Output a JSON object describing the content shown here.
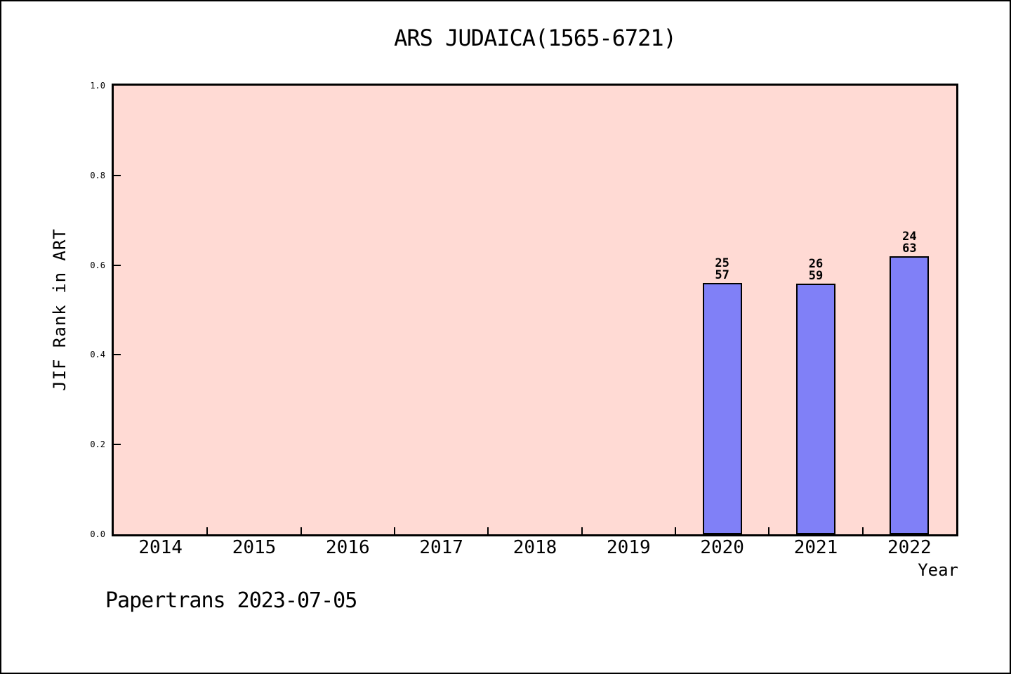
{
  "page": {
    "footer": "Papertrans 2023-07-05"
  },
  "chart_data": {
    "type": "bar",
    "title": "ARS JUDAICA(1565-6721)",
    "xlabel": "Year",
    "ylabel": "JIF Rank in ART",
    "categories": [
      "2014",
      "2015",
      "2016",
      "2017",
      "2018",
      "2019",
      "2020",
      "2021",
      "2022"
    ],
    "series": [
      {
        "name": "JIF Rank in ART",
        "values": [
          null,
          null,
          null,
          null,
          null,
          null,
          0.561,
          0.559,
          0.619
        ]
      }
    ],
    "bar_labels": [
      null,
      null,
      null,
      null,
      null,
      null,
      [
        "25",
        "57"
      ],
      [
        "26",
        "59"
      ],
      [
        "24",
        "63"
      ]
    ],
    "ylim": [
      0.0,
      1.0
    ],
    "yticks": [
      0.0,
      0.2,
      0.4,
      0.6,
      0.8,
      1.0
    ],
    "ytick_labels": [
      "0.0",
      "0.2",
      "0.4",
      "0.6",
      "0.8",
      "1.0"
    ],
    "grid": false,
    "legend": "none",
    "colors": {
      "bar_fill": "#8080F7",
      "bar_border": "#000000",
      "plot_bg": "#FFDAD4",
      "axis": "#000000",
      "text": "#000000"
    }
  }
}
